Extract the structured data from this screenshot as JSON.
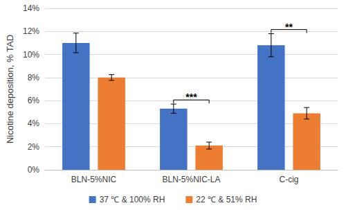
{
  "chart_data": {
    "type": "bar",
    "y_label": "Nicotine deposition, % TAD",
    "categories": [
      "BLN-5%NIC",
      "BLN-5%NIC-LA",
      "C-cig"
    ],
    "series": [
      {
        "name": "37 ℃ & 100% RH",
        "color": "#4472c4",
        "values": [
          11.0,
          5.3,
          10.8
        ],
        "errors": [
          0.85,
          0.4,
          1.0
        ]
      },
      {
        "name": "22 ℃ & 51% RH",
        "color": "#ed7d31",
        "values": [
          8.0,
          2.1,
          4.9
        ],
        "errors": [
          0.25,
          0.3,
          0.5
        ]
      }
    ],
    "ylim": [
      0,
      14
    ],
    "yticks": [
      {
        "value": 0,
        "label": "0%"
      },
      {
        "value": 2,
        "label": "2%"
      },
      {
        "value": 4,
        "label": "4%"
      },
      {
        "value": 6,
        "label": "6%"
      },
      {
        "value": 8,
        "label": "8%"
      },
      {
        "value": 10,
        "label": "10%"
      },
      {
        "value": 12,
        "label": "12%"
      },
      {
        "value": 14,
        "label": "14%"
      }
    ],
    "grid": true,
    "legend": "bottom",
    "annotations": [
      {
        "text": "***",
        "category": "BLN-5%NIC-LA"
      },
      {
        "text": "**",
        "category": "C-cig"
      }
    ]
  }
}
